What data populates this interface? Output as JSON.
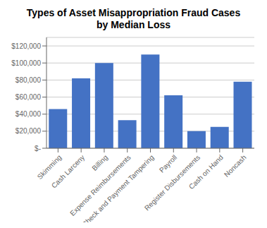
{
  "chart_data": {
    "type": "bar",
    "title": "Types of Asset Misappropriation Fraud Cases\nby Median Loss",
    "categories": [
      "Skimming",
      "Cash Larceny",
      "Billing",
      "Expense Reimbursements",
      "Check and Payment Tampering",
      "Payroll",
      "Register Disbursements",
      "Cash on Hand",
      "Noncash"
    ],
    "values": [
      46000,
      82000,
      100000,
      33000,
      110000,
      62000,
      20000,
      25000,
      78000
    ],
    "color": "#4472C4",
    "ylim": [
      0,
      130000
    ],
    "yticks": [
      {
        "value": 0,
        "label": "$-"
      },
      {
        "value": 20000,
        "label": "$20,000"
      },
      {
        "value": 40000,
        "label": "$40,000"
      },
      {
        "value": 60000,
        "label": "$60,000"
      },
      {
        "value": 80000,
        "label": "$80,000"
      },
      {
        "value": 100000,
        "label": "$100,000"
      },
      {
        "value": 120000,
        "label": "$120,000"
      }
    ],
    "grid": true
  }
}
